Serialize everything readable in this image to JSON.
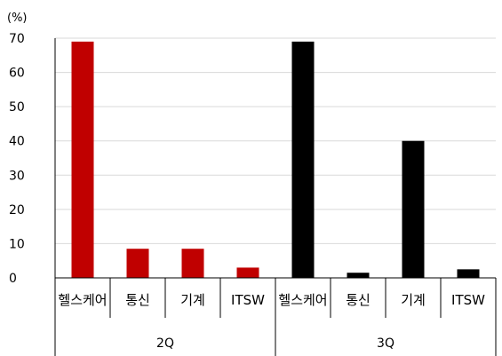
{
  "chart_data": {
    "type": "bar",
    "unit_label": "(%)",
    "ylim": [
      0,
      70
    ],
    "yticks": [
      "0",
      "10",
      "20",
      "30",
      "40",
      "50",
      "60",
      "70"
    ],
    "grid": true,
    "groups": [
      {
        "label": "2Q",
        "color": "#c00000",
        "categories": [
          "헬스케어",
          "통신",
          "기계",
          "ITSW"
        ],
        "values": [
          69,
          8.5,
          8.5,
          3
        ]
      },
      {
        "label": "3Q",
        "color": "#000000",
        "categories": [
          "헬스케어",
          "통신",
          "기계",
          "ITSW"
        ],
        "values": [
          69,
          1.5,
          40,
          2.5
        ]
      }
    ]
  }
}
